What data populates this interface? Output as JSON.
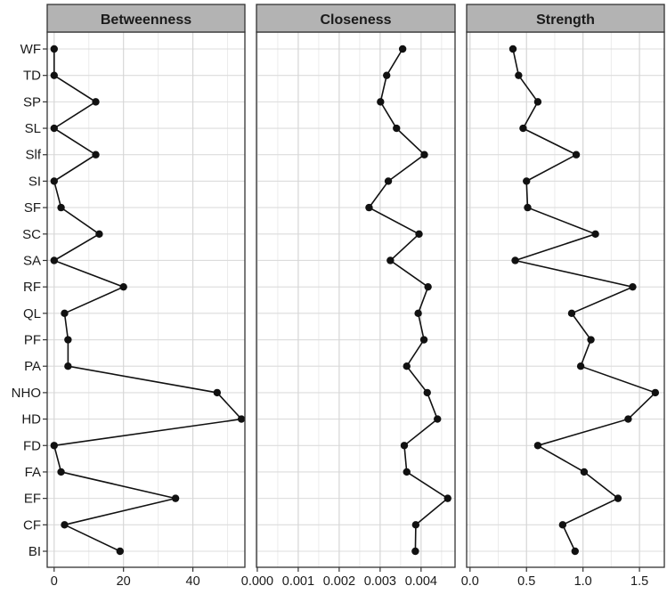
{
  "chart_data": {
    "type": "line",
    "categories": [
      "WF",
      "TD",
      "SP",
      "SL",
      "Slf",
      "SI",
      "SF",
      "SC",
      "SA",
      "RF",
      "QL",
      "PF",
      "PA",
      "NHO",
      "HD",
      "FD",
      "FA",
      "EF",
      "CF",
      "BI"
    ],
    "panels": [
      {
        "title": "Betweenness",
        "xlim": [
          -2,
          55
        ],
        "ticks": [
          0,
          20,
          40
        ],
        "tick_labels": [
          "0",
          "20",
          "40"
        ],
        "values": [
          0,
          0,
          12,
          0,
          12,
          0,
          2,
          13,
          0,
          20,
          3,
          4,
          4,
          47,
          54,
          0,
          2,
          35,
          3,
          19
        ]
      },
      {
        "title": "Closeness",
        "xlim": [
          -2e-05,
          0.00483
        ],
        "ticks": [
          0,
          0.001,
          0.002,
          0.003,
          0.004
        ],
        "tick_labels": [
          "0.000",
          "0.001",
          "0.002",
          "0.003",
          "0.004"
        ],
        "values": [
          0.00355,
          0.00316,
          0.00301,
          0.0034,
          0.00408,
          0.0032,
          0.00273,
          0.00395,
          0.00325,
          0.00417,
          0.00393,
          0.00407,
          0.00365,
          0.00415,
          0.0044,
          0.00359,
          0.00365,
          0.00465,
          0.00387,
          0.00386
        ]
      },
      {
        "title": "Strength",
        "xlim": [
          -0.03,
          1.72
        ],
        "ticks": [
          0,
          0.5,
          1.0,
          1.5
        ],
        "tick_labels": [
          "0.0",
          "0.5",
          "1.0",
          "1.5"
        ],
        "values": [
          0.38,
          0.43,
          0.6,
          0.47,
          0.94,
          0.5,
          0.51,
          1.11,
          0.4,
          1.44,
          0.9,
          1.07,
          0.98,
          1.64,
          1.4,
          0.6,
          1.01,
          1.31,
          0.82,
          0.93
        ]
      }
    ]
  }
}
